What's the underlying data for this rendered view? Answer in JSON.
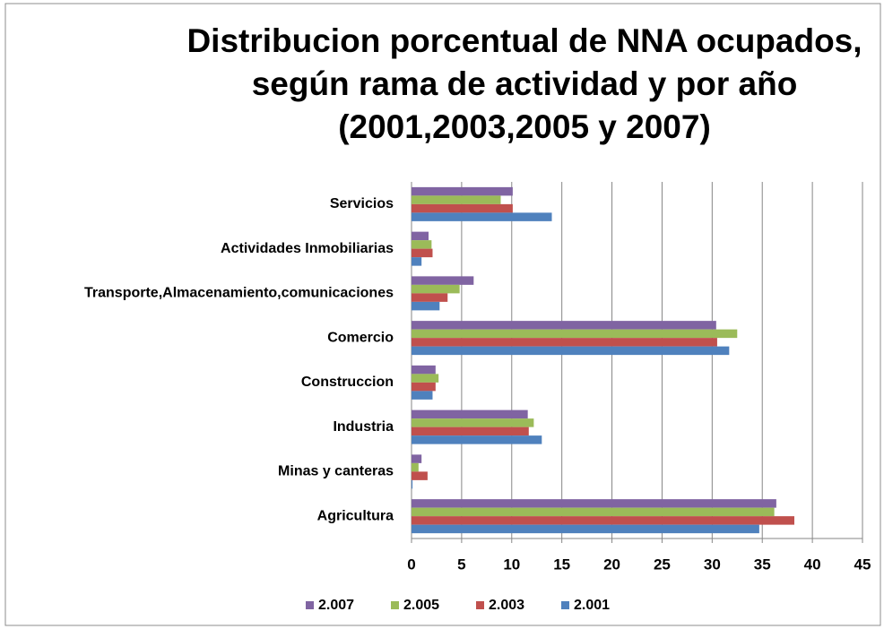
{
  "chart_data": {
    "type": "hbar",
    "title": [
      "Distribucion porcentual de NNA ocupados,",
      "según rama de actividad y por año",
      "(2001,2003,2005 y 2007)"
    ],
    "categories": [
      "Servicios",
      "Actividades Inmobiliarias",
      "Transporte,Almacenamiento,comunicaciones",
      "Comercio",
      "Construccion",
      "Industria",
      "Minas y canteras",
      "Agricultura"
    ],
    "series": [
      {
        "name": "2.007",
        "color": "#8064a2",
        "values": [
          10.1,
          1.7,
          6.2,
          30.4,
          2.4,
          11.6,
          1.0,
          36.4
        ]
      },
      {
        "name": "2.005",
        "color": "#9bbb59",
        "values": [
          8.9,
          2.0,
          4.8,
          32.5,
          2.7,
          12.2,
          0.7,
          36.2
        ]
      },
      {
        "name": "2.003",
        "color": "#c0504d",
        "values": [
          10.1,
          2.1,
          3.6,
          30.5,
          2.4,
          11.7,
          1.6,
          38.2
        ]
      },
      {
        "name": "2.001",
        "color": "#4f81bd",
        "values": [
          14.0,
          1.0,
          2.8,
          31.7,
          2.1,
          13.0,
          0.1,
          34.7
        ]
      }
    ],
    "xlim": [
      0,
      45
    ],
    "xticks": [
      0,
      5,
      10,
      15,
      20,
      25,
      30,
      35,
      40,
      45
    ],
    "grid": true,
    "legend": "bottom"
  }
}
